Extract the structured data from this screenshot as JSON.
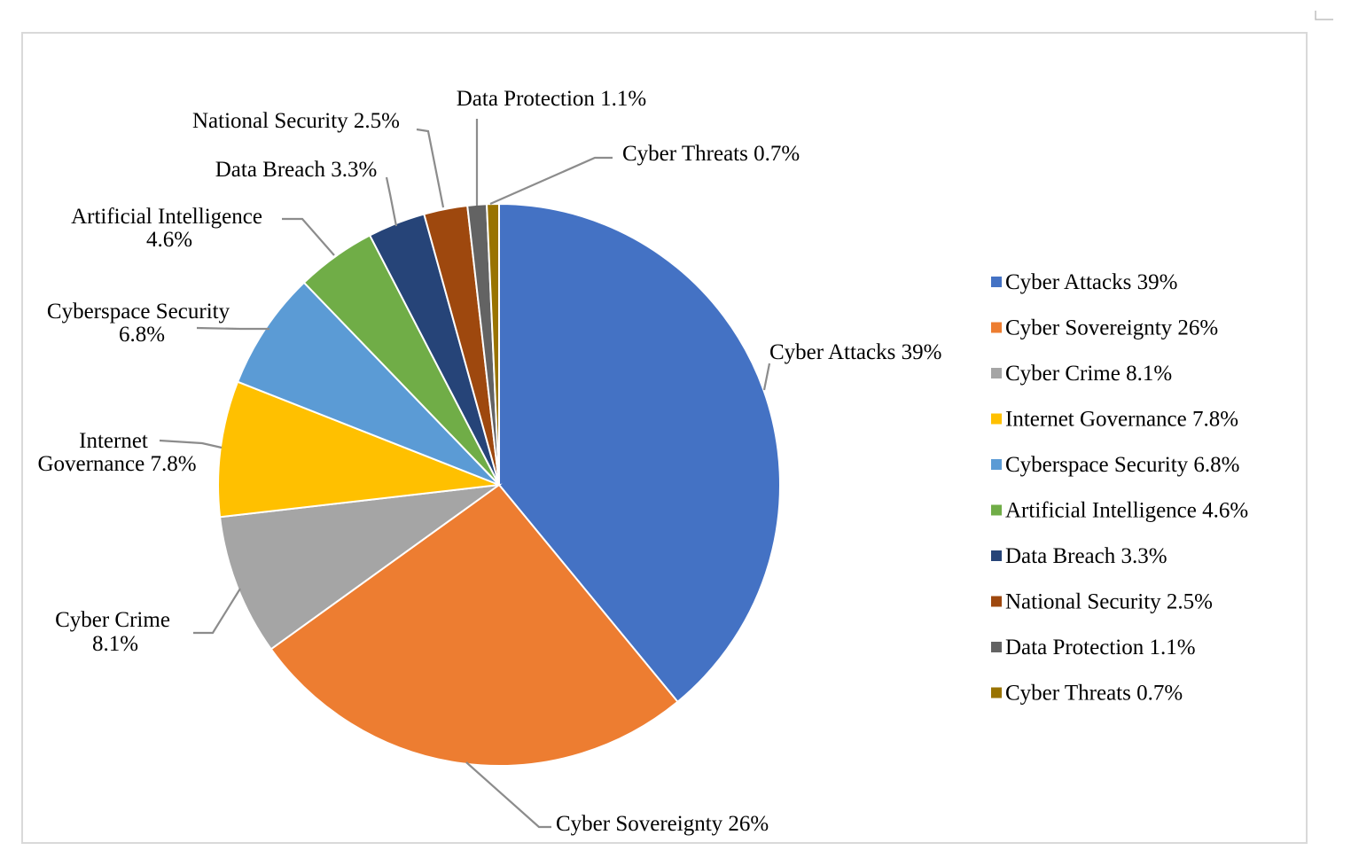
{
  "chart_data": {
    "type": "pie",
    "slices": [
      {
        "label": "Cyber Attacks 39%",
        "legend": "Cyber Attacks 39%",
        "value": 39,
        "color": "#4472C4"
      },
      {
        "label": "Cyber Sovereignty 26%",
        "legend": "Cyber Sovereignty 26%",
        "value": 26,
        "color": "#ED7D31"
      },
      {
        "label": "Cyber Crime\n8.1%",
        "legend": "Cyber Crime 8.1%",
        "value": 8.1,
        "color": "#A5A5A5"
      },
      {
        "label": "Internet\nGovernance 7.8%",
        "legend": "Internet Governance 7.8%",
        "value": 7.8,
        "color": "#FFC000"
      },
      {
        "label": "Cyberspace Security\n6.8%",
        "legend": "Cyberspace Security 6.8%",
        "value": 6.8,
        "color": "#5B9BD5"
      },
      {
        "label": "Artificial Intelligence\n4.6%",
        "legend": "Artificial Intelligence 4.6%",
        "value": 4.6,
        "color": "#70AD47"
      },
      {
        "label": "Data Breach 3.3%",
        "legend": "Data Breach 3.3%",
        "value": 3.3,
        "color": "#264478"
      },
      {
        "label": "National Security 2.5%",
        "legend": "National Security 2.5%",
        "value": 2.5,
        "color": "#9E480E"
      },
      {
        "label": "Data Protection 1.1%",
        "legend": "Data Protection 1.1%",
        "value": 1.1,
        "color": "#636363"
      },
      {
        "label": "Cyber Threats 0.7%",
        "legend": "Cyber Threats 0.7%",
        "value": 0.7,
        "color": "#997300"
      }
    ],
    "legend_position": "right"
  }
}
